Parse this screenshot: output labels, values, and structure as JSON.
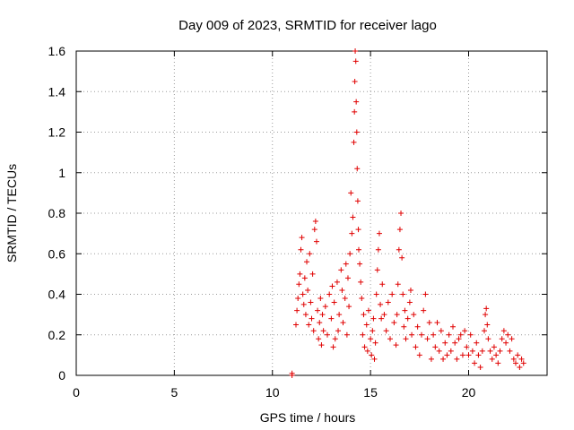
{
  "chart_data": {
    "type": "scatter",
    "title": "Day 009 of 2023, SRMTID for receiver lago",
    "xlabel": "GPS time / hours",
    "ylabel": "SRMTID / TECUs",
    "xlim": [
      0,
      24
    ],
    "ylim": [
      0,
      1.6
    ],
    "xticks": [
      0,
      5,
      10,
      15,
      20
    ],
    "yticks": [
      0,
      0.2,
      0.4,
      0.6,
      0.8,
      1,
      1.2,
      1.4,
      1.6
    ],
    "xtick_labels": [
      "0",
      "5",
      "10",
      "15",
      "20"
    ],
    "ytick_labels": [
      "0",
      "0.2",
      "0.4",
      "0.6",
      "0.8",
      "1",
      "1.2",
      "1.4",
      "1.6"
    ],
    "grid": true,
    "marker": "plus",
    "series": [
      {
        "name": "SRMTID",
        "color": "#e00000",
        "points": [
          [
            11.0,
            0.0
          ],
          [
            11.0,
            0.01
          ],
          [
            11.2,
            0.25
          ],
          [
            11.25,
            0.32
          ],
          [
            11.3,
            0.38
          ],
          [
            11.35,
            0.45
          ],
          [
            11.4,
            0.5
          ],
          [
            11.45,
            0.62
          ],
          [
            11.5,
            0.68
          ],
          [
            11.55,
            0.4
          ],
          [
            11.6,
            0.35
          ],
          [
            11.65,
            0.48
          ],
          [
            11.7,
            0.3
          ],
          [
            11.75,
            0.56
          ],
          [
            11.8,
            0.42
          ],
          [
            11.85,
            0.25
          ],
          [
            11.9,
            0.6
          ],
          [
            11.95,
            0.36
          ],
          [
            12.0,
            0.28
          ],
          [
            12.05,
            0.5
          ],
          [
            12.1,
            0.22
          ],
          [
            12.15,
            0.72
          ],
          [
            12.2,
            0.76
          ],
          [
            12.25,
            0.66
          ],
          [
            12.3,
            0.32
          ],
          [
            12.35,
            0.18
          ],
          [
            12.4,
            0.26
          ],
          [
            12.45,
            0.38
          ],
          [
            12.5,
            0.15
          ],
          [
            12.55,
            0.3
          ],
          [
            12.6,
            0.22
          ],
          [
            12.7,
            0.34
          ],
          [
            12.8,
            0.2
          ],
          [
            12.9,
            0.4
          ],
          [
            13.0,
            0.28
          ],
          [
            13.05,
            0.44
          ],
          [
            13.1,
            0.14
          ],
          [
            13.15,
            0.36
          ],
          [
            13.2,
            0.18
          ],
          [
            13.3,
            0.46
          ],
          [
            13.35,
            0.22
          ],
          [
            13.4,
            0.3
          ],
          [
            13.5,
            0.52
          ],
          [
            13.55,
            0.42
          ],
          [
            13.6,
            0.26
          ],
          [
            13.7,
            0.38
          ],
          [
            13.75,
            0.55
          ],
          [
            13.8,
            0.2
          ],
          [
            13.85,
            0.48
          ],
          [
            13.9,
            0.34
          ],
          [
            13.95,
            0.6
          ],
          [
            14.0,
            0.9
          ],
          [
            14.05,
            0.7
          ],
          [
            14.1,
            0.78
          ],
          [
            14.15,
            1.15
          ],
          [
            14.18,
            1.3
          ],
          [
            14.2,
            1.45
          ],
          [
            14.22,
            1.6
          ],
          [
            14.25,
            1.55
          ],
          [
            14.27,
            1.35
          ],
          [
            14.3,
            1.2
          ],
          [
            14.32,
            1.02
          ],
          [
            14.35,
            0.86
          ],
          [
            14.38,
            0.72
          ],
          [
            14.4,
            0.62
          ],
          [
            14.45,
            0.55
          ],
          [
            14.5,
            0.46
          ],
          [
            14.55,
            0.38
          ],
          [
            14.6,
            0.2
          ],
          [
            14.65,
            0.3
          ],
          [
            14.7,
            0.14
          ],
          [
            14.8,
            0.25
          ],
          [
            14.85,
            0.12
          ],
          [
            14.9,
            0.32
          ],
          [
            15.0,
            0.18
          ],
          [
            15.05,
            0.1
          ],
          [
            15.1,
            0.22
          ],
          [
            15.15,
            0.28
          ],
          [
            15.2,
            0.08
          ],
          [
            15.25,
            0.16
          ],
          [
            15.3,
            0.4
          ],
          [
            15.35,
            0.52
          ],
          [
            15.4,
            0.62
          ],
          [
            15.45,
            0.7
          ],
          [
            15.5,
            0.35
          ],
          [
            15.55,
            0.28
          ],
          [
            15.6,
            0.45
          ],
          [
            15.7,
            0.3
          ],
          [
            15.8,
            0.22
          ],
          [
            15.9,
            0.36
          ],
          [
            16.0,
            0.18
          ],
          [
            16.1,
            0.4
          ],
          [
            16.2,
            0.26
          ],
          [
            16.3,
            0.15
          ],
          [
            16.35,
            0.3
          ],
          [
            16.4,
            0.45
          ],
          [
            16.45,
            0.62
          ],
          [
            16.5,
            0.72
          ],
          [
            16.55,
            0.8
          ],
          [
            16.6,
            0.58
          ],
          [
            16.65,
            0.4
          ],
          [
            16.7,
            0.24
          ],
          [
            16.75,
            0.32
          ],
          [
            16.8,
            0.18
          ],
          [
            16.9,
            0.28
          ],
          [
            17.0,
            0.36
          ],
          [
            17.05,
            0.42
          ],
          [
            17.1,
            0.2
          ],
          [
            17.2,
            0.3
          ],
          [
            17.3,
            0.14
          ],
          [
            17.4,
            0.24
          ],
          [
            17.5,
            0.1
          ],
          [
            17.6,
            0.2
          ],
          [
            17.7,
            0.32
          ],
          [
            17.8,
            0.4
          ],
          [
            17.9,
            0.18
          ],
          [
            18.0,
            0.26
          ],
          [
            18.1,
            0.08
          ],
          [
            18.2,
            0.2
          ],
          [
            18.3,
            0.14
          ],
          [
            18.4,
            0.26
          ],
          [
            18.5,
            0.12
          ],
          [
            18.6,
            0.22
          ],
          [
            18.7,
            0.08
          ],
          [
            18.8,
            0.16
          ],
          [
            18.9,
            0.1
          ],
          [
            19.0,
            0.2
          ],
          [
            19.1,
            0.12
          ],
          [
            19.2,
            0.24
          ],
          [
            19.3,
            0.16
          ],
          [
            19.4,
            0.08
          ],
          [
            19.5,
            0.18
          ],
          [
            19.6,
            0.2
          ],
          [
            19.7,
            0.1
          ],
          [
            19.8,
            0.22
          ],
          [
            19.9,
            0.14
          ],
          [
            20.0,
            0.1
          ],
          [
            20.1,
            0.2
          ],
          [
            20.2,
            0.12
          ],
          [
            20.3,
            0.06
          ],
          [
            20.4,
            0.16
          ],
          [
            20.5,
            0.1
          ],
          [
            20.6,
            0.04
          ],
          [
            20.7,
            0.12
          ],
          [
            20.8,
            0.22
          ],
          [
            20.85,
            0.3
          ],
          [
            20.9,
            0.33
          ],
          [
            20.95,
            0.25
          ],
          [
            21.0,
            0.18
          ],
          [
            21.1,
            0.12
          ],
          [
            21.2,
            0.08
          ],
          [
            21.3,
            0.14
          ],
          [
            21.4,
            0.1
          ],
          [
            21.5,
            0.06
          ],
          [
            21.6,
            0.12
          ],
          [
            21.7,
            0.18
          ],
          [
            21.8,
            0.22
          ],
          [
            21.9,
            0.16
          ],
          [
            22.0,
            0.2
          ],
          [
            22.1,
            0.12
          ],
          [
            22.2,
            0.18
          ],
          [
            22.3,
            0.08
          ],
          [
            22.4,
            0.06
          ],
          [
            22.5,
            0.1
          ],
          [
            22.6,
            0.04
          ],
          [
            22.7,
            0.08
          ],
          [
            22.8,
            0.06
          ]
        ]
      }
    ]
  }
}
